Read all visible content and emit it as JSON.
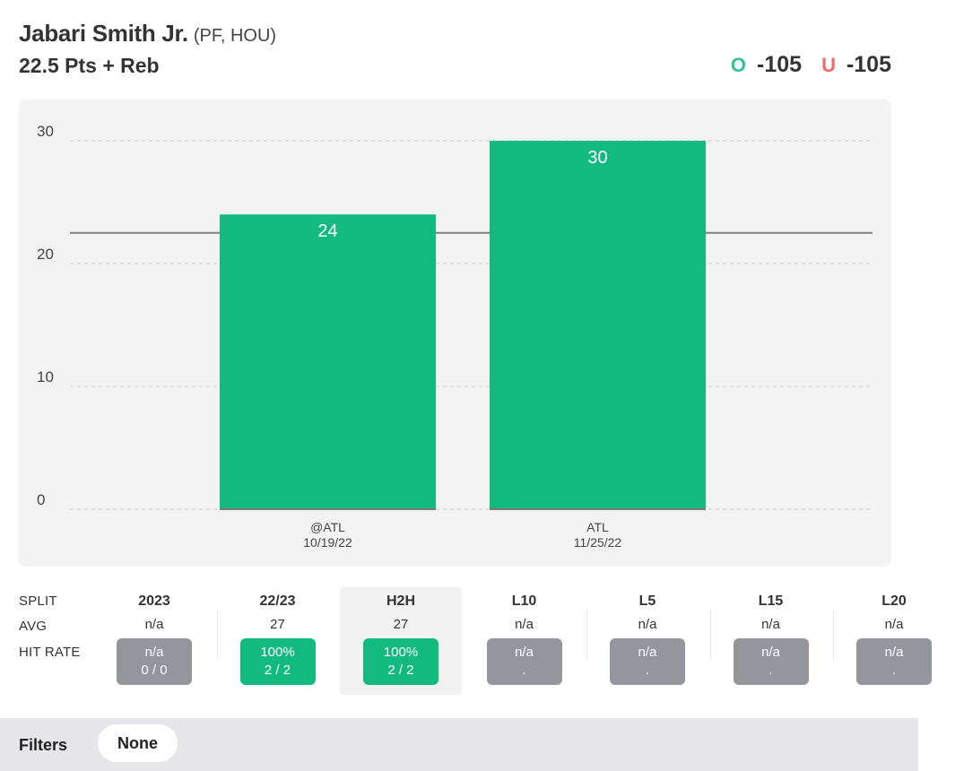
{
  "header": {
    "player_name": "Jabari Smith Jr.",
    "player_meta": "(PF, HOU)",
    "prop_line": "22.5 Pts + Reb"
  },
  "odds": {
    "over_letter": "O",
    "over_value": "-105",
    "under_letter": "U",
    "under_value": "-105",
    "over_color": "#2ec39a",
    "under_color": "#ee6a6a"
  },
  "chart_data": {
    "type": "bar",
    "categories": [
      "@ATL\n10/19/22",
      "ATL\n11/25/22"
    ],
    "category_labels": [
      [
        "@ATL",
        "10/19/22"
      ],
      [
        "ATL",
        "11/25/22"
      ]
    ],
    "values": [
      24,
      30
    ],
    "data_labels": [
      "24",
      "30"
    ],
    "yticks": [
      0,
      10,
      20,
      30
    ],
    "ylim": [
      0,
      30
    ],
    "reference_line": 22.5,
    "grid": true,
    "bar_color": "#13ba80",
    "title": "",
    "xlabel": "",
    "ylabel": ""
  },
  "splits": {
    "row_labels": {
      "split": "SPLIT",
      "avg": "AVG",
      "hit_rate": "HIT RATE"
    },
    "columns": [
      {
        "header": "2023",
        "avg": "n/a",
        "rate": "n/a",
        "record": "0 / 0",
        "tone": "gray",
        "selected": false
      },
      {
        "header": "22/23",
        "avg": "27",
        "rate": "100%",
        "record": "2 / 2",
        "tone": "green",
        "selected": false
      },
      {
        "header": "H2H",
        "avg": "27",
        "rate": "100%",
        "record": "2 / 2",
        "tone": "green",
        "selected": true
      },
      {
        "header": "L10",
        "avg": "n/a",
        "rate": "n/a",
        "record": ".",
        "tone": "gray",
        "selected": false
      },
      {
        "header": "L5",
        "avg": "n/a",
        "rate": "n/a",
        "record": ".",
        "tone": "gray",
        "selected": false
      },
      {
        "header": "L15",
        "avg": "n/a",
        "rate": "n/a",
        "record": ".",
        "tone": "gray",
        "selected": false
      },
      {
        "header": "L20",
        "avg": "n/a",
        "rate": "n/a",
        "record": ".",
        "tone": "gray",
        "selected": false
      }
    ]
  },
  "filters": {
    "label": "Filters",
    "value": "None"
  }
}
